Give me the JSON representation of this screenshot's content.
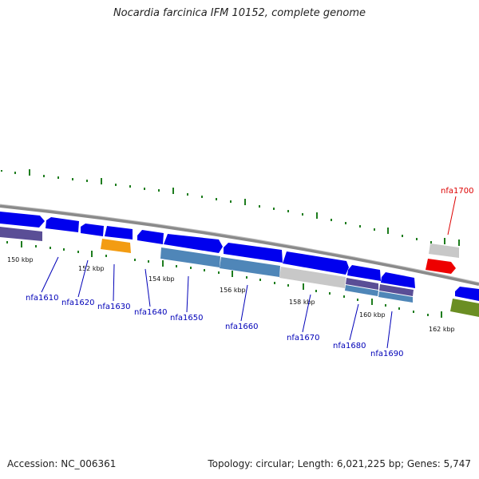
{
  "title": "Nocardia farcinica IFM 10152, complete genome",
  "footer": {
    "accession": "Accession: NC_006361",
    "stats": "Topology: circular; Length: 6,021,225 bp; Genes: 5,747"
  },
  "colors": {
    "backbone": "#8a8a8a",
    "tick": "#1e7d1e",
    "label_default": "#0000b8",
    "label_highlight": "#dd0000",
    "gene_blue": "#0000ee",
    "gene_purple": "#5a4e96",
    "gene_steel": "#4f86b8",
    "gene_gray": "#c8c8c8",
    "gene_orange": "#f39c12",
    "gene_red": "#ee0000",
    "gene_olive": "#6b8e23"
  },
  "kbp_labels": [
    "150 kbp",
    "152 kbp",
    "154 kbp",
    "156 kbp",
    "158 kbp",
    "160 kbp",
    "162 kbp"
  ],
  "gene_labels": [
    "nfa1610",
    "nfa1620",
    "nfa1630",
    "nfa1640",
    "nfa1650",
    "nfa1660",
    "nfa1670",
    "nfa1680",
    "nfa1690",
    "nfa1700"
  ]
}
